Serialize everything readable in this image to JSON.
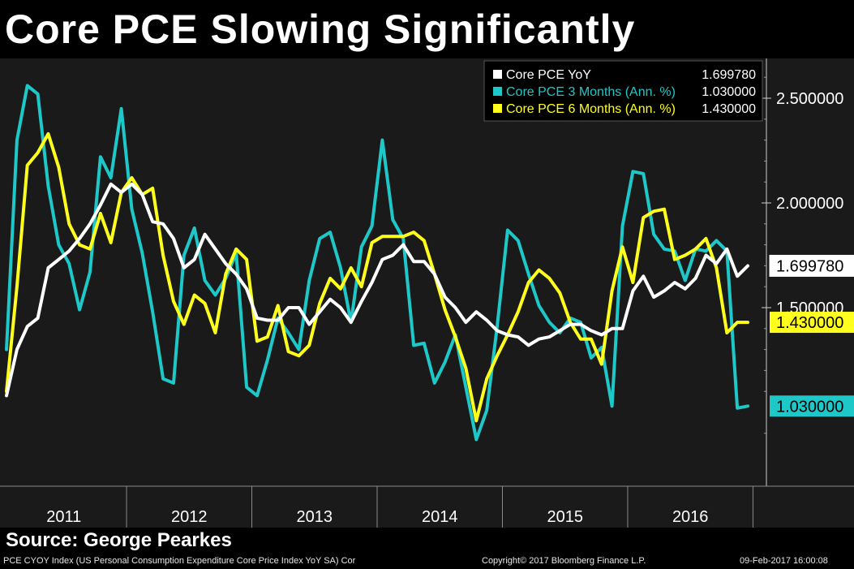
{
  "title": "Core PCE Slowing Significantly",
  "source": "Source: George Pearkes",
  "footer": {
    "left": "PCE CYOY Index (US Personal Consumption Expenditure Core Price Index YoY SA) Cor",
    "center": "Copyright© 2017 Bloomberg Finance L.P.",
    "right": "09-Feb-2017 16:00:08"
  },
  "colors": {
    "background": "#1a1a1a",
    "white_series": "#ffffff",
    "cyan_series": "#1fc8c8",
    "yellow_series": "#ffff1e"
  },
  "chart_data": {
    "type": "line",
    "title": "Core PCE Slowing Significantly",
    "x_axis": {
      "type": "date",
      "start": "2011-01",
      "end": "2016-12",
      "labels": [
        "2011",
        "2012",
        "2013",
        "2014",
        "2015",
        "2016"
      ]
    },
    "y_axis": {
      "position": "right",
      "ticks": [
        "2.500000",
        "2.000000",
        "1.500000"
      ],
      "ylim": [
        0.75,
        2.8
      ]
    },
    "grid": false,
    "legend": {
      "placement": "top-right"
    },
    "x": [
      "2011-01",
      "2011-02",
      "2011-03",
      "2011-04",
      "2011-05",
      "2011-06",
      "2011-07",
      "2011-08",
      "2011-09",
      "2011-10",
      "2011-11",
      "2011-12",
      "2012-01",
      "2012-02",
      "2012-03",
      "2012-04",
      "2012-05",
      "2012-06",
      "2012-07",
      "2012-08",
      "2012-09",
      "2012-10",
      "2012-11",
      "2012-12",
      "2013-01",
      "2013-02",
      "2013-03",
      "2013-04",
      "2013-05",
      "2013-06",
      "2013-07",
      "2013-08",
      "2013-09",
      "2013-10",
      "2013-11",
      "2013-12",
      "2014-01",
      "2014-02",
      "2014-03",
      "2014-04",
      "2014-05",
      "2014-06",
      "2014-07",
      "2014-08",
      "2014-09",
      "2014-10",
      "2014-11",
      "2014-12",
      "2015-01",
      "2015-02",
      "2015-03",
      "2015-04",
      "2015-05",
      "2015-06",
      "2015-07",
      "2015-08",
      "2015-09",
      "2015-10",
      "2015-11",
      "2015-12",
      "2016-01",
      "2016-02",
      "2016-03",
      "2016-04",
      "2016-05",
      "2016-06",
      "2016-07",
      "2016-08",
      "2016-09",
      "2016-10",
      "2016-11",
      "2016-12"
    ],
    "series": [
      {
        "name": "Core PCE YoY",
        "display_value": "1.699780",
        "color": "#ffffff",
        "values": [
          1.08,
          1.3,
          1.41,
          1.45,
          1.69,
          1.73,
          1.77,
          1.83,
          1.9,
          1.99,
          2.09,
          2.05,
          2.09,
          2.04,
          1.91,
          1.9,
          1.83,
          1.69,
          1.73,
          1.85,
          1.78,
          1.71,
          1.66,
          1.59,
          1.45,
          1.44,
          1.44,
          1.5,
          1.5,
          1.42,
          1.48,
          1.54,
          1.5,
          1.43,
          1.53,
          1.62,
          1.73,
          1.75,
          1.8,
          1.72,
          1.72,
          1.66,
          1.55,
          1.5,
          1.43,
          1.48,
          1.44,
          1.39,
          1.37,
          1.36,
          1.32,
          1.35,
          1.36,
          1.39,
          1.42,
          1.42,
          1.39,
          1.37,
          1.4,
          1.4,
          1.58,
          1.65,
          1.55,
          1.58,
          1.62,
          1.59,
          1.64,
          1.75,
          1.71,
          1.78,
          1.65,
          1.69978
        ]
      },
      {
        "name": "Core PCE 3 Months (Ann. %)",
        "display_value": "1.030000",
        "color": "#1fc8c8",
        "values": [
          1.3,
          2.3,
          2.56,
          2.52,
          2.08,
          1.8,
          1.71,
          1.49,
          1.67,
          2.22,
          2.12,
          2.45,
          1.97,
          1.76,
          1.48,
          1.16,
          1.14,
          1.75,
          1.88,
          1.63,
          1.56,
          1.64,
          1.76,
          1.12,
          1.08,
          1.25,
          1.45,
          1.38,
          1.3,
          1.63,
          1.83,
          1.86,
          1.69,
          1.43,
          1.79,
          1.89,
          2.3,
          1.92,
          1.83,
          1.32,
          1.33,
          1.14,
          1.24,
          1.37,
          1.12,
          0.87,
          1.01,
          1.41,
          1.87,
          1.82,
          1.66,
          1.51,
          1.43,
          1.38,
          1.45,
          1.43,
          1.26,
          1.31,
          1.03,
          1.89,
          2.15,
          2.14,
          1.85,
          1.78,
          1.77,
          1.63,
          1.78,
          1.77,
          1.82,
          1.77,
          1.02,
          1.03
        ]
      },
      {
        "name": "Core PCE 6 Months (Ann. %)",
        "display_value": "1.430000",
        "color": "#ffff1e",
        "values": [
          1.1,
          1.6,
          2.18,
          2.24,
          2.33,
          2.17,
          1.9,
          1.8,
          1.78,
          1.95,
          1.81,
          2.05,
          2.12,
          2.04,
          2.07,
          1.75,
          1.53,
          1.42,
          1.56,
          1.52,
          1.38,
          1.66,
          1.78,
          1.73,
          1.34,
          1.36,
          1.51,
          1.29,
          1.27,
          1.32,
          1.52,
          1.64,
          1.59,
          1.69,
          1.6,
          1.81,
          1.84,
          1.84,
          1.84,
          1.86,
          1.82,
          1.66,
          1.49,
          1.36,
          1.21,
          0.96,
          1.16,
          1.27,
          1.37,
          1.48,
          1.62,
          1.68,
          1.64,
          1.57,
          1.43,
          1.35,
          1.35,
          1.23,
          1.58,
          1.79,
          1.62,
          1.93,
          1.96,
          1.97,
          1.73,
          1.75,
          1.78,
          1.83,
          1.69,
          1.38,
          1.43,
          1.43
        ]
      }
    ]
  }
}
